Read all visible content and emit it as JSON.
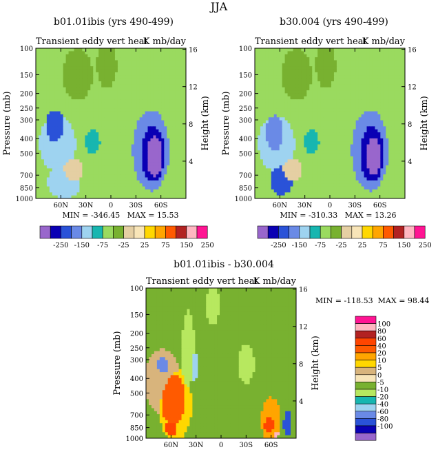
{
  "figure_title": "JJA",
  "chart_data": [
    {
      "type": "heatmap",
      "title": "b01.01ibis (yrs 490-499)",
      "subtitle_left": "Transient eddy vert heat",
      "subtitle_right": "K mb/day",
      "ylabel": "Pressure (mb)",
      "y2label": "Height (km)",
      "x_ticks": [
        "60N",
        "30N",
        "0",
        "30S",
        "60S"
      ],
      "x_lat_values": [
        60,
        30,
        0,
        -30,
        -60
      ],
      "xlim": [
        90,
        -90
      ],
      "y_ticks": [
        "100",
        "150",
        "200",
        "250",
        "300",
        "400",
        "500",
        "700",
        "850",
        "1000"
      ],
      "y_pressure_values": [
        100,
        150,
        200,
        250,
        300,
        400,
        500,
        700,
        850,
        1000
      ],
      "ylim": [
        1000,
        100
      ],
      "y2_ticks": [
        "4",
        "8",
        "12",
        "16"
      ],
      "y2_height_values": [
        4,
        8,
        12,
        16
      ],
      "log_pressure_axis": true,
      "min_label": "MIN = -346.45",
      "max_label": "MAX =   15.53",
      "min": -346.45,
      "max": 15.53,
      "colorbar_ticks": [
        "-250",
        "-150",
        "-75",
        "-25",
        "25",
        "75",
        "150",
        "250"
      ],
      "field": {
        "bg_level": 6,
        "features": [
          {
            "lat": 64,
            "p": 430,
            "level": 4,
            "w": 22,
            "h": 0.42
          },
          {
            "lat": 67,
            "p": 340,
            "level": 2,
            "w": 12,
            "h": 0.26
          },
          {
            "lat": 56,
            "p": 780,
            "level": 4,
            "w": 20,
            "h": 0.25
          },
          {
            "lat": 22,
            "p": 420,
            "level": 5,
            "w": 9,
            "h": 0.18
          },
          {
            "lat": -48,
            "p": 480,
            "level": 3,
            "w": 22,
            "h": 0.62
          },
          {
            "lat": -50,
            "p": 500,
            "level": 1,
            "w": 16,
            "h": 0.48
          },
          {
            "lat": -52,
            "p": 520,
            "level": 0,
            "w": 11,
            "h": 0.36
          },
          {
            "lat": 40,
            "p": 150,
            "level": 7,
            "w": 18,
            "h": 0.4
          },
          {
            "lat": 5,
            "p": 130,
            "level": 7,
            "w": 12,
            "h": 0.35
          },
          {
            "lat": 45,
            "p": 650,
            "level": 8,
            "w": 12,
            "h": 0.18
          }
        ]
      }
    },
    {
      "type": "heatmap",
      "title": "b30.004 (yrs 490-499)",
      "subtitle_left": "Transient eddy vert heat",
      "subtitle_right": "K mb/day",
      "ylabel": "Pressure (mb)",
      "y2label": "Height (km)",
      "x_ticks": [
        "60N",
        "30N",
        "0",
        "30S",
        "60S"
      ],
      "x_lat_values": [
        60,
        30,
        0,
        -30,
        -60
      ],
      "xlim": [
        90,
        -90
      ],
      "y_ticks": [
        "100",
        "150",
        "200",
        "250",
        "300",
        "400",
        "500",
        "700",
        "850",
        "1000"
      ],
      "y_pressure_values": [
        100,
        150,
        200,
        250,
        300,
        400,
        500,
        700,
        850,
        1000
      ],
      "ylim": [
        1000,
        100
      ],
      "y2_ticks": [
        "4",
        "8",
        "12",
        "16"
      ],
      "y2_height_values": [
        4,
        8,
        12,
        16
      ],
      "log_pressure_axis": true,
      "min_label": "MIN = -310.33",
      "max_label": "MAX =   13.26",
      "min": -310.33,
      "max": 13.26,
      "colorbar_ticks": [
        "-250",
        "-150",
        "-75",
        "-25",
        "25",
        "75",
        "150",
        "250"
      ],
      "field": {
        "bg_level": 6,
        "features": [
          {
            "lat": 64,
            "p": 430,
            "level": 4,
            "w": 22,
            "h": 0.42
          },
          {
            "lat": 66,
            "p": 380,
            "level": 3,
            "w": 12,
            "h": 0.3
          },
          {
            "lat": 58,
            "p": 760,
            "level": 2,
            "w": 14,
            "h": 0.22
          },
          {
            "lat": 22,
            "p": 420,
            "level": 5,
            "w": 9,
            "h": 0.18
          },
          {
            "lat": -48,
            "p": 480,
            "level": 3,
            "w": 22,
            "h": 0.62
          },
          {
            "lat": -50,
            "p": 500,
            "level": 1,
            "w": 16,
            "h": 0.48
          },
          {
            "lat": -52,
            "p": 520,
            "level": 0,
            "w": 10,
            "h": 0.34
          },
          {
            "lat": 40,
            "p": 150,
            "level": 7,
            "w": 18,
            "h": 0.4
          },
          {
            "lat": 5,
            "p": 130,
            "level": 7,
            "w": 12,
            "h": 0.35
          },
          {
            "lat": 45,
            "p": 650,
            "level": 8,
            "w": 12,
            "h": 0.18
          }
        ]
      }
    },
    {
      "type": "heatmap",
      "title": "b01.01ibis - b30.004",
      "subtitle_left": "Transient eddy vert heat",
      "subtitle_right": "K mb/day",
      "ylabel": "Pressure (mb)",
      "y2label": "Height (km)",
      "x_ticks": [
        "60N",
        "30N",
        "0",
        "30S",
        "60S"
      ],
      "x_lat_values": [
        60,
        30,
        0,
        -30,
        -60
      ],
      "xlim": [
        90,
        -90
      ],
      "y_ticks": [
        "100",
        "150",
        "200",
        "250",
        "300",
        "400",
        "500",
        "700",
        "850",
        "1000"
      ],
      "y_pressure_values": [
        100,
        150,
        200,
        250,
        300,
        400,
        500,
        700,
        850,
        1000
      ],
      "ylim": [
        1000,
        100
      ],
      "y2_ticks": [
        "4",
        "8",
        "12",
        "16"
      ],
      "y2_height_values": [
        4,
        8,
        12,
        16
      ],
      "log_pressure_axis": true,
      "min_label": "MIN = -118.53",
      "max_label": "MAX =  98.44",
      "min": -118.53,
      "max": 98.44,
      "colorbar_ticks": [
        "100",
        "80",
        "60",
        "40",
        "20",
        "10",
        "5",
        "0",
        "-5",
        "-10",
        "-20",
        "-40",
        "-60",
        "-80",
        "-100"
      ],
      "field": {
        "bg_level": 7,
        "features": [
          {
            "lat": 70,
            "p": 420,
            "level": 9,
            "w": 22,
            "h": 0.5
          },
          {
            "lat": 55,
            "p": 600,
            "level": 10,
            "w": 20,
            "h": 0.55
          },
          {
            "lat": 57,
            "p": 560,
            "level": 12,
            "w": 16,
            "h": 0.45
          },
          {
            "lat": 60,
            "p": 860,
            "level": 13,
            "w": 7,
            "h": 0.12
          },
          {
            "lat": -60,
            "p": 760,
            "level": 11,
            "w": 12,
            "h": 0.35
          },
          {
            "lat": -58,
            "p": 820,
            "level": 13,
            "w": 7,
            "h": 0.14
          },
          {
            "lat": -66,
            "p": 940,
            "level": 15,
            "w": 3,
            "h": 0.05
          },
          {
            "lat": 70,
            "p": 330,
            "level": 3,
            "w": 8,
            "h": 0.13
          },
          {
            "lat": 32,
            "p": 330,
            "level": 4,
            "w": 5,
            "h": 0.22
          },
          {
            "lat": -30,
            "p": 320,
            "level": 6,
            "w": 10,
            "h": 0.3
          },
          {
            "lat": -80,
            "p": 800,
            "level": 2,
            "w": 5,
            "h": 0.2
          },
          {
            "lat": 60,
            "p": 170,
            "level": 7,
            "w": 25,
            "h": 0.35
          },
          {
            "lat": 40,
            "p": 250,
            "level": 6,
            "w": 8,
            "h": 0.6
          },
          {
            "lat": 10,
            "p": 130,
            "level": 6,
            "w": 8,
            "h": 0.3
          }
        ]
      }
    }
  ],
  "palettes": {
    "top": [
      "#9966cc",
      "#0a00b4",
      "#2a52d8",
      "#6a8ae6",
      "#9ed3f0",
      "#17b6b0",
      "#9ada5f",
      "#78b130",
      "#e5cfa3",
      "#f8e5b8",
      "#ffd700",
      "#ffa500",
      "#ff5a00",
      "#b22222",
      "#ffb6c1",
      "#ff1493"
    ],
    "bottom": [
      "#9966cc",
      "#0a00b4",
      "#2a52d8",
      "#6a8ae6",
      "#9ed3f0",
      "#17b6b0",
      "#b7e85f",
      "#78b130",
      "#f8e5b8",
      "#d8b47c",
      "#ffd700",
      "#ffa500",
      "#ff5a00",
      "#ff4500",
      "#b22222",
      "#ffb6c1",
      "#ff1493"
    ]
  }
}
